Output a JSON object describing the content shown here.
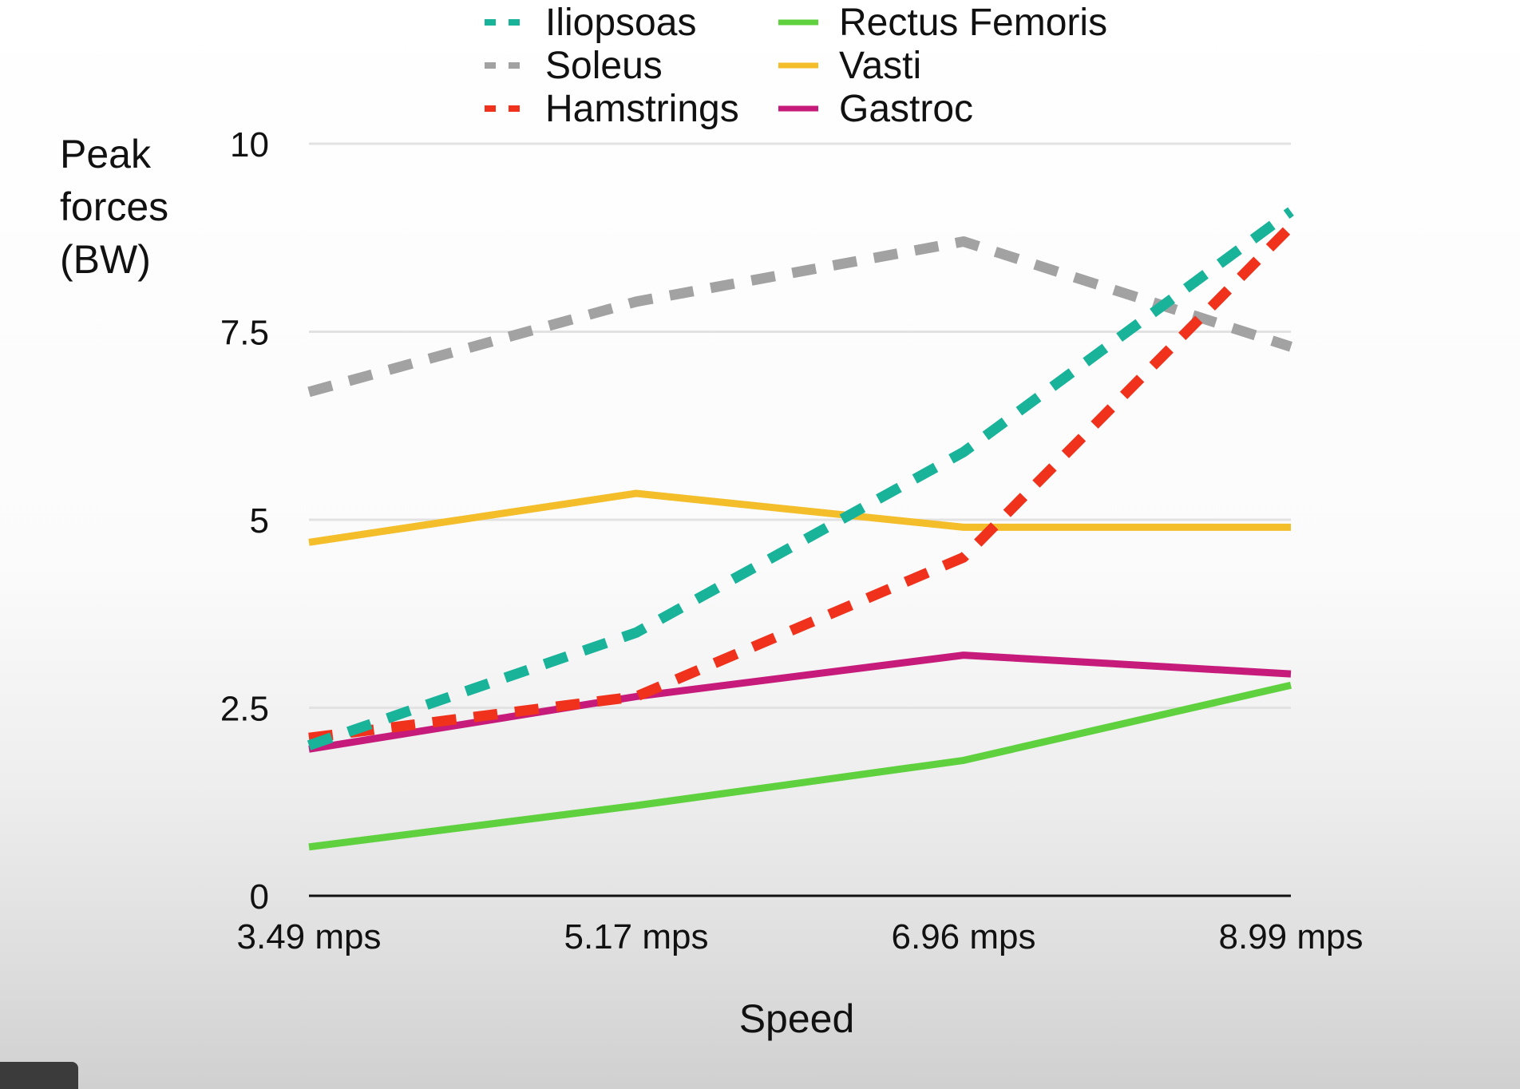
{
  "chart_data": {
    "type": "line",
    "title": "",
    "xlabel": "Speed",
    "ylabel": [
      "Peak",
      "forces",
      "(BW)"
    ],
    "categories": [
      "3.49 mps",
      "5.17 mps",
      "6.96 mps",
      "8.99 mps"
    ],
    "yticks": [
      0,
      2.5,
      5,
      7.5,
      10
    ],
    "ytick_labels": [
      "0",
      "2.5",
      "5",
      "7.5",
      "10"
    ],
    "ylim": [
      0,
      10
    ],
    "grid": true,
    "legend_position": "top",
    "series": [
      {
        "name": "Iliopsoas",
        "style": "dashed",
        "color": "#19b39a",
        "values": [
          2.0,
          3.5,
          5.9,
          9.1
        ]
      },
      {
        "name": "Soleus",
        "style": "dashed",
        "color": "#a2a2a2",
        "values": [
          6.7,
          7.9,
          8.7,
          7.3
        ]
      },
      {
        "name": "Hamstrings",
        "style": "dashed",
        "color": "#f0321c",
        "values": [
          2.1,
          2.65,
          4.5,
          8.9
        ]
      },
      {
        "name": "Rectus Femoris",
        "style": "solid",
        "color": "#5fd13f",
        "values": [
          0.65,
          1.2,
          1.8,
          2.8
        ]
      },
      {
        "name": "Vasti",
        "style": "solid",
        "color": "#f4bd2a",
        "values": [
          4.7,
          5.35,
          4.9,
          4.9
        ]
      },
      {
        "name": "Gastroc",
        "style": "solid",
        "color": "#c61b7a",
        "values": [
          1.95,
          2.65,
          3.2,
          2.95
        ]
      }
    ]
  }
}
